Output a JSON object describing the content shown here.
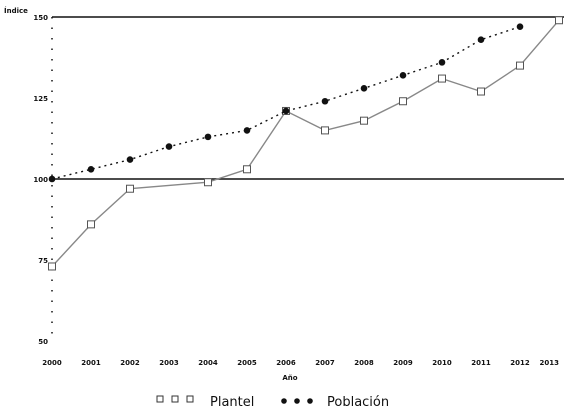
{
  "chart_data": {
    "type": "line",
    "title": "",
    "xlabel": "Año",
    "ylabel": "Índice",
    "x": [
      "2000",
      "2001",
      "2002",
      "2003",
      "2004",
      "2005",
      "2006",
      "2007",
      "2008",
      "2009",
      "2010",
      "2011",
      "2012",
      "2013"
    ],
    "ylim": [
      50,
      150
    ],
    "y_ticks": [
      "150",
      "125",
      "100",
      "75",
      "50"
    ],
    "reference_lines": [
      100,
      150
    ],
    "series": [
      {
        "name": "Plantel",
        "marker": "open-square",
        "line": "solid",
        "color": "#888888",
        "values": [
          73,
          86,
          97,
          null,
          99,
          103,
          121,
          115,
          118,
          124,
          131,
          127,
          135,
          149
        ]
      },
      {
        "name": "Población",
        "marker": "filled-circle",
        "line": "dotted",
        "color": "#111111",
        "values": [
          100,
          103,
          106,
          110,
          113,
          115,
          121,
          124,
          128,
          132,
          136,
          143,
          147,
          null
        ]
      }
    ],
    "legend": {
      "placement": "bottom-center"
    },
    "grid": false
  }
}
